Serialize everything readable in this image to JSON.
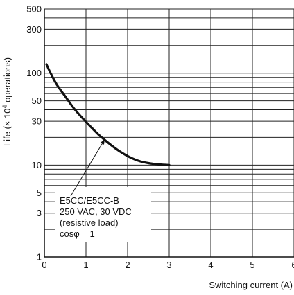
{
  "chart_data": {
    "type": "line",
    "xlabel": "Switching current (A)",
    "ylabel_prefix": "Life (× 10",
    "ylabel_exp": "4",
    "ylabel_suffix": " operations)",
    "xlim": [
      0,
      6
    ],
    "ylim": [
      1,
      500
    ],
    "y_scale": "log",
    "grid": true,
    "x_ticks": [
      0,
      1,
      2,
      3,
      4,
      5,
      6
    ],
    "x_tick_labels": [
      "0",
      "1",
      "2",
      "3",
      "4",
      "5",
      "6"
    ],
    "y_ticks": [
      1,
      3,
      5,
      10,
      30,
      50,
      100,
      300,
      500
    ],
    "y_tick_labels": [
      "1",
      "3",
      "5",
      "10",
      "30",
      "50",
      "100",
      "300",
      "500"
    ],
    "y_gridlines": [
      1,
      2,
      3,
      4,
      5,
      6,
      7,
      8,
      9,
      10,
      20,
      30,
      40,
      50,
      60,
      70,
      80,
      90,
      100,
      200,
      300,
      400,
      500
    ],
    "series": [
      {
        "x": [
          0.05,
          0.15,
          0.3,
          0.5,
          0.7,
          0.9,
          1.1,
          1.3,
          1.5,
          1.7,
          1.9,
          2.1,
          2.3,
          2.5,
          2.7,
          2.85,
          3.0
        ],
        "values": [
          125,
          100,
          75,
          56,
          42,
          33,
          26.5,
          21.5,
          18,
          15.3,
          13.3,
          11.9,
          11.0,
          10.5,
          10.2,
          10.1,
          10.0
        ]
      }
    ],
    "annotation": {
      "lines": [
        "E5CC/E5CC-B",
        "250 VAC, 30 VDC",
        "(resistive load)",
        "cosφ = 1"
      ],
      "arrow_to": {
        "x": 1.45,
        "y": 19
      }
    }
  },
  "colors": {
    "axis": "#111111",
    "grid": "#222222",
    "curve": "#111111",
    "background": "#ffffff"
  }
}
